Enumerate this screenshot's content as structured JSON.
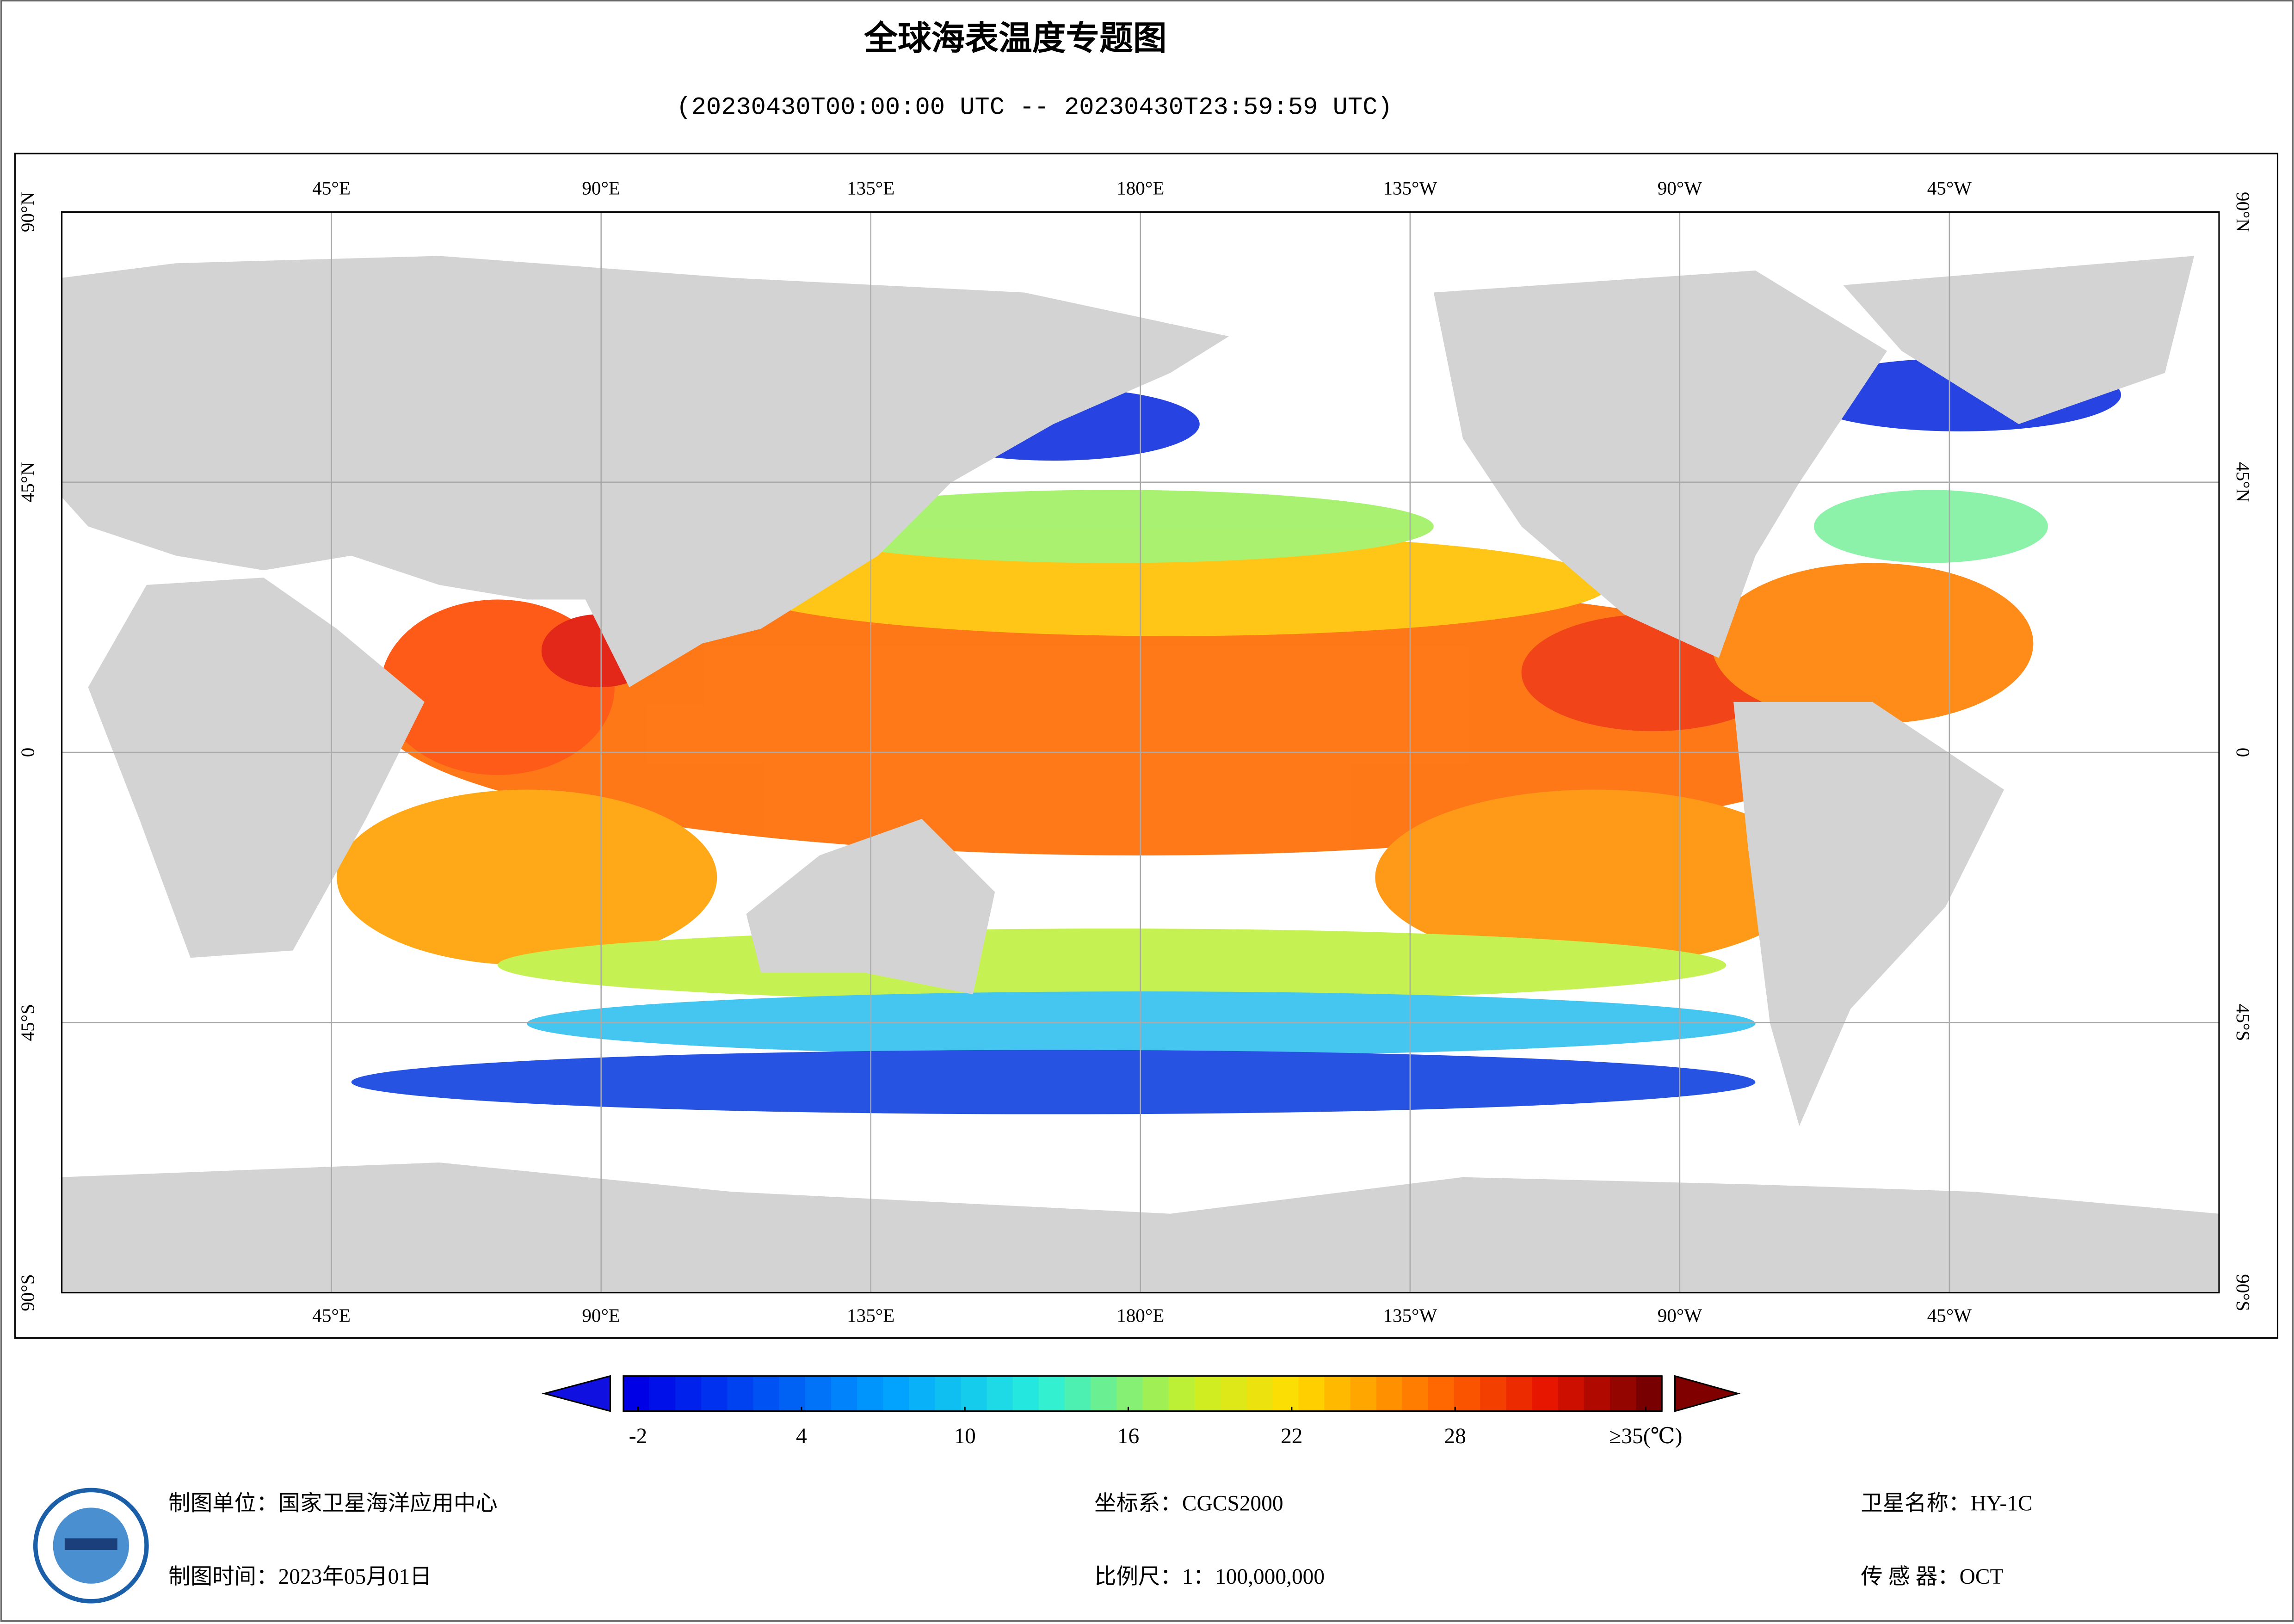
{
  "title": "全球海表温度专题图",
  "subtitle": "(20230430T00:00:00 UTC -- 20230430T23:59:59 UTC)",
  "map": {
    "lon_ticks": [
      {
        "value": 45,
        "label": "45°E"
      },
      {
        "value": 90,
        "label": "90°E"
      },
      {
        "value": 135,
        "label": "135°E"
      },
      {
        "value": 180,
        "label": "180°E"
      },
      {
        "value": 225,
        "label": "135°W"
      },
      {
        "value": 270,
        "label": "90°W"
      },
      {
        "value": 315,
        "label": "45°W"
      }
    ],
    "lat_ticks": [
      {
        "value": 90,
        "label": "90°N"
      },
      {
        "value": 45,
        "label": "45°N"
      },
      0,
      {
        "value": -45,
        "label": "45°S"
      },
      {
        "value": -90,
        "label": "90°S"
      }
    ]
  },
  "colorbar": {
    "ticks": [
      -2,
      4,
      10,
      16,
      22,
      28,
      {
        "value": 35,
        "label": "≥35(℃)"
      }
    ]
  },
  "footer": {
    "unit": "制图单位：国家卫星海洋应用中心",
    "time": "制图时间：2023年05月01日",
    "crs": "坐标系：CGCS2000",
    "scale": "比例尺：1：100,000,000",
    "satellite": "卫星名称：HY-1C",
    "sensor": "传 感 器：OCT"
  }
}
